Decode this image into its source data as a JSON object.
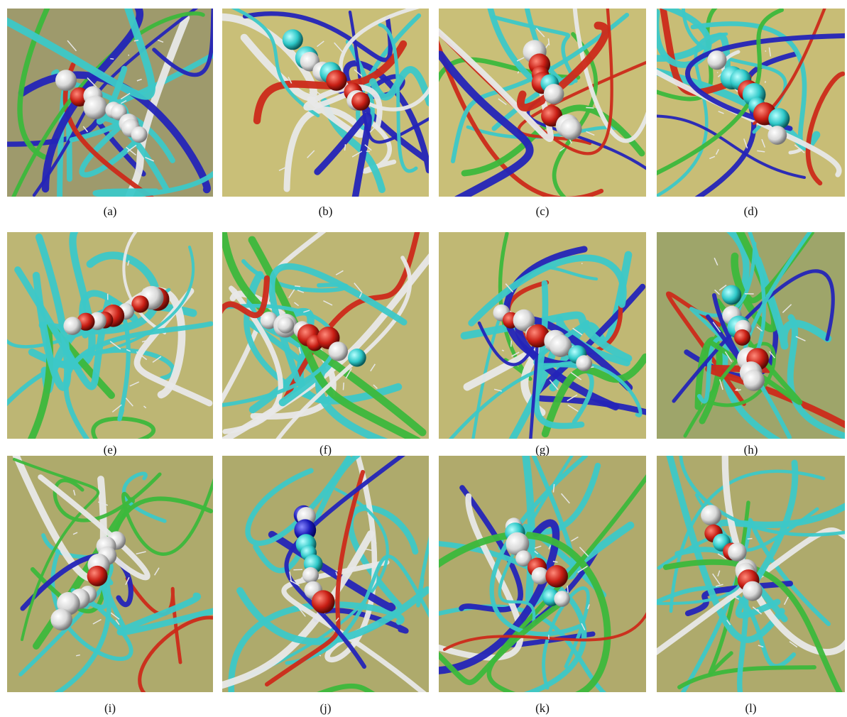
{
  "panels": [
    {
      "caption": "(a)"
    },
    {
      "caption": "(b)"
    },
    {
      "caption": "(c)"
    },
    {
      "caption": "(d)"
    },
    {
      "caption": "(e)"
    },
    {
      "caption": "(f)"
    },
    {
      "caption": "(g)"
    },
    {
      "caption": "(h)"
    },
    {
      "caption": "(i)"
    },
    {
      "caption": "(j)"
    },
    {
      "caption": "(k)"
    },
    {
      "caption": "(l)"
    }
  ]
}
